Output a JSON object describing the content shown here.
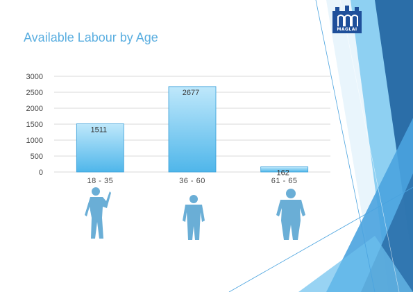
{
  "slide": {
    "title": "Available Labour by Age",
    "logo_text": "MAGLAI"
  },
  "colors": {
    "bar_top": "#bfe8fb",
    "bar_bottom": "#4fb6ea",
    "bar_stroke": "#3a9fd8",
    "title": "#5aaee0",
    "grid": "#d9d9d9",
    "figure": "#6aaed6",
    "deco_dark": "#2b6ea8",
    "deco_mid": "#4aa3df",
    "deco_light": "#8ed0f2"
  },
  "figures": [
    {
      "category": "18 - 35",
      "icon": "young-worker-silhouette-icon"
    },
    {
      "category": "36 - 60",
      "icon": "adult-worker-silhouette-icon"
    },
    {
      "category": "61 - 65",
      "icon": "older-worker-silhouette-icon"
    }
  ],
  "chart_data": {
    "type": "bar",
    "title": "",
    "xlabel": "",
    "ylabel": "",
    "categories": [
      "18 - 35",
      "36 - 60",
      "61 - 65"
    ],
    "values": [
      1511,
      2677,
      162
    ],
    "data_labels": [
      "1511",
      "2677",
      "162"
    ],
    "yticks": [
      0,
      500,
      1000,
      1500,
      2000,
      2500,
      3000
    ],
    "ytick_labels": [
      "0",
      "500",
      "1000",
      "1500",
      "2000",
      "2500",
      "3000"
    ],
    "ylim": [
      0,
      3000
    ],
    "grid": true,
    "legend": "none"
  }
}
